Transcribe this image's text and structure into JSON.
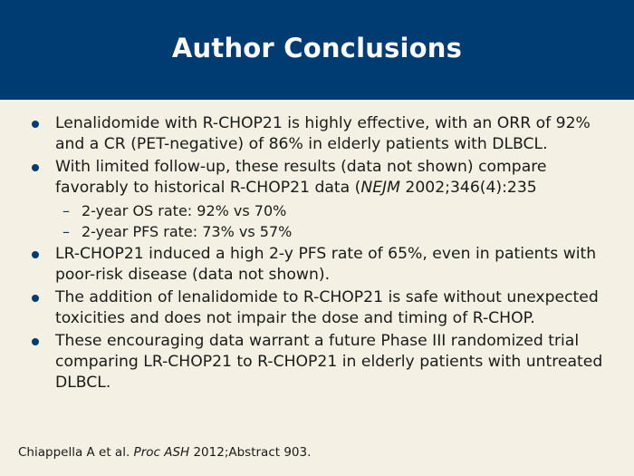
{
  "slide": {
    "title": "Author Conclusions",
    "bullets": [
      {
        "text": "Lenalidomide with R-CHOP21 is highly effective, with an ORR of 92% and a CR (PET-negative) of 86% in elderly patients with DLBCL."
      },
      {
        "text_before": "With limited follow-up, these results (data not shown) compare favorably to historical R-CHOP21 data (",
        "text_italic": "NEJM",
        "text_after": " 2002;346(4):235",
        "subitems": [
          "2-year OS rate: 92% vs 70%",
          "2-year PFS rate: 73% vs 57%"
        ]
      },
      {
        "text": "LR-CHOP21 induced a high 2-y PFS rate of 65%, even in patients with poor-risk disease (data not shown)."
      },
      {
        "text": "The addition of lenalidomide to R-CHOP21 is safe without unexpected toxicities and does not impair the dose and timing of R-CHOP."
      },
      {
        "text": "These encouraging data warrant a future Phase III randomized trial comparing LR-CHOP21 to R-CHOP21 in elderly patients with untreated DLBCL."
      }
    ],
    "citation": {
      "before": "Chiappella A et al. ",
      "italic": "Proc ASH",
      "after": " 2012;Abstract 903."
    },
    "sub_dash": "–"
  },
  "colors": {
    "header_bg": "#003c71",
    "body_bg": "#f4f1e4",
    "bullet": "#003c71"
  }
}
